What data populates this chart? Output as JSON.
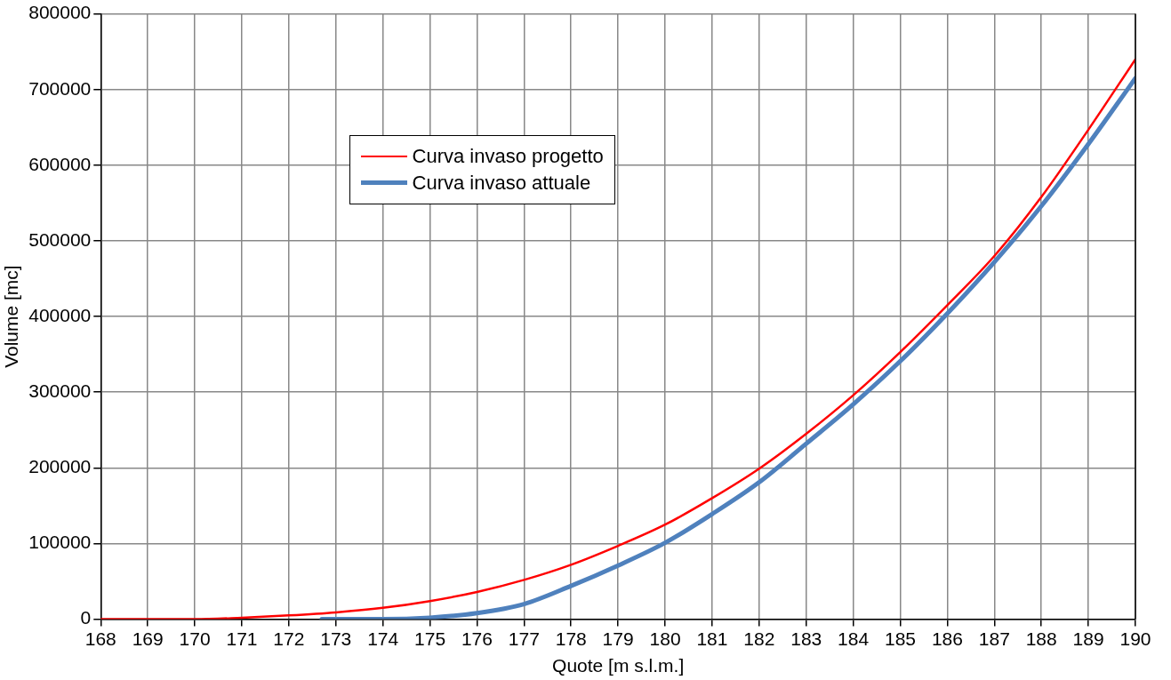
{
  "chart_data": {
    "type": "line",
    "xlabel": "Quote [m s.l.m.]",
    "ylabel": "Volume [mc]",
    "xlim": [
      168,
      190
    ],
    "xticks": [
      168,
      169,
      170,
      171,
      172,
      173,
      174,
      175,
      176,
      177,
      178,
      179,
      180,
      181,
      182,
      183,
      184,
      185,
      186,
      187,
      188,
      189,
      190
    ],
    "ylim": [
      0,
      800000
    ],
    "yticks": [
      0,
      100000,
      200000,
      300000,
      400000,
      500000,
      600000,
      700000,
      800000
    ],
    "grid": true,
    "legend": "top",
    "marker": "none",
    "line_style": "solid",
    "series": [
      {
        "name": "Curva invaso progetto",
        "color": "#ff0000",
        "x": [
          168,
          169,
          170,
          171,
          172,
          173,
          174,
          175,
          176,
          177,
          178,
          179,
          180,
          181,
          182,
          183,
          184,
          185,
          186,
          187,
          188,
          189,
          190
        ],
        "values": [
          0,
          0,
          0,
          2000,
          5000,
          9000,
          15000,
          24000,
          36000,
          52000,
          72000,
          97000,
          125000,
          160000,
          199000,
          245000,
          296000,
          353000,
          415000,
          480000,
          558000,
          647000,
          740000
        ]
      },
      {
        "name": "Curva invaso attuale",
        "color": "#4f81bd",
        "x": [
          172.7,
          173,
          174,
          175,
          176,
          177,
          178,
          179,
          180,
          181,
          182,
          183,
          184,
          185,
          186,
          187,
          188,
          189,
          190
        ],
        "values": [
          0,
          0,
          0,
          2000,
          8000,
          20000,
          44000,
          71000,
          101000,
          139000,
          181000,
          232000,
          284000,
          341000,
          404000,
          472000,
          546000,
          628000,
          715000
        ]
      }
    ]
  }
}
